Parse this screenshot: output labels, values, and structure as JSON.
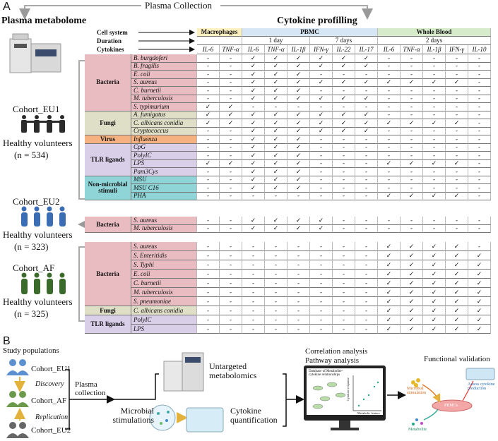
{
  "panel_a": {
    "label": "A",
    "plasma_collection": "Plasma Collection",
    "left_title": "Plasma metabolome",
    "right_title": "Cytokine profilling",
    "cohorts": [
      {
        "name": "Cohort_EU1",
        "label": "Healthy volunteers",
        "n": "(n = 534)"
      },
      {
        "name": "Cohort_EU2",
        "label": "Healthy volunteers",
        "n": "(n = 323)"
      },
      {
        "name": "Cohort_AF",
        "label": "Healthy volunteers",
        "n": "(n = 325)"
      }
    ],
    "table": {
      "row_headers": [
        "Cell system",
        "Duration",
        "Cytokines"
      ],
      "cell_systems": [
        {
          "name": "Macrophages",
          "color": "#fcefc0",
          "durations": [
            {
              "cytokines": [
                "IL-6",
                "TNF-α"
              ]
            }
          ]
        },
        {
          "name": "PBMC",
          "color": "#d7e6f5",
          "durations": [
            {
              "label": "1 day",
              "cytokines": [
                "IL-6",
                "TNF-α",
                "IL-1β"
              ]
            },
            {
              "label": "7 days",
              "cytokines": [
                "IFN-γ",
                "IL-22",
                "IL-17"
              ]
            }
          ]
        },
        {
          "name": "Whole Blood",
          "color": "#d6ebc9",
          "durations": [
            {
              "label": "2 days",
              "cytokines": [
                "IL-6",
                "TNF-α",
                "IL-1β",
                "IFN-γ",
                "IL-10"
              ]
            }
          ]
        }
      ],
      "blocks": [
        {
          "groups": [
            {
              "name": "Bacteria",
              "color": "#e9bcc1",
              "rows": [
                {
                  "stimulus": "B. burgdoferi",
                  "cells": [
                    "-",
                    "-",
                    "✓",
                    "✓",
                    "✓",
                    "✓",
                    "✓",
                    "✓",
                    "-",
                    "-",
                    "-",
                    "-",
                    "-"
                  ]
                },
                {
                  "stimulus": "B. fragilis",
                  "cells": [
                    "-",
                    "-",
                    "✓",
                    "✓",
                    "✓",
                    "✓",
                    "✓",
                    "✓",
                    "-",
                    "-",
                    "-",
                    "-",
                    "-"
                  ]
                },
                {
                  "stimulus": "E. coli",
                  "cells": [
                    "-",
                    "-",
                    "✓",
                    "✓",
                    "✓",
                    "-",
                    "-",
                    "-",
                    "-",
                    "-",
                    "-",
                    "-",
                    "-"
                  ]
                },
                {
                  "stimulus": "S. aureus",
                  "cells": [
                    "-",
                    "-",
                    "✓",
                    "✓",
                    "✓",
                    "✓",
                    "✓",
                    "✓",
                    "✓",
                    "✓",
                    "✓",
                    "✓",
                    "-"
                  ]
                },
                {
                  "stimulus": "C. burnetii",
                  "cells": [
                    "-",
                    "-",
                    "✓",
                    "✓",
                    "✓",
                    "-",
                    "-",
                    "-",
                    "-",
                    "-",
                    "-",
                    "-",
                    "-"
                  ]
                },
                {
                  "stimulus": "M. tuberculosis",
                  "cells": [
                    "-",
                    "-",
                    "✓",
                    "✓",
                    "✓",
                    "✓",
                    "✓",
                    "✓",
                    "-",
                    "-",
                    "-",
                    "-",
                    "-"
                  ]
                },
                {
                  "stimulus": "S. typimurium",
                  "cells": [
                    "✓",
                    "✓",
                    "-",
                    "-",
                    "-",
                    "-",
                    "-",
                    "-",
                    "-",
                    "-",
                    "-",
                    "-",
                    "-"
                  ]
                }
              ]
            },
            {
              "name": "Fungi",
              "color": "#dedfc6",
              "rows": [
                {
                  "stimulus": "A. fumigatus",
                  "cells": [
                    "✓",
                    "✓",
                    "✓",
                    "✓",
                    "✓",
                    "✓",
                    "✓",
                    "✓",
                    "-",
                    "-",
                    "-",
                    "-",
                    "-"
                  ]
                },
                {
                  "stimulus": "C. albicans conidia",
                  "cells": [
                    "✓",
                    "✓",
                    "✓",
                    "✓",
                    "✓",
                    "✓",
                    "✓",
                    "✓",
                    "✓",
                    "✓",
                    "✓",
                    "✓",
                    "-"
                  ]
                },
                {
                  "stimulus": "Cryptococcus",
                  "cells": [
                    "-",
                    "-",
                    "✓",
                    "✓",
                    "✓",
                    "✓",
                    "✓",
                    "✓",
                    "-",
                    "-",
                    "-",
                    "-",
                    "-"
                  ]
                }
              ]
            },
            {
              "name": "Virus",
              "color": "#f5b17f",
              "rows": [
                {
                  "stimulus": "Influenza",
                  "cells": [
                    "-",
                    "-",
                    "✓",
                    "✓",
                    "✓",
                    "-",
                    "-",
                    "-",
                    "-",
                    "-",
                    "-",
                    "-",
                    "-"
                  ]
                }
              ]
            },
            {
              "name": "TLR ligands",
              "color": "#d9cfe9",
              "rows": [
                {
                  "stimulus": "CpG",
                  "cells": [
                    "-",
                    "-",
                    "✓",
                    "✓",
                    "✓",
                    "-",
                    "-",
                    "-",
                    "-",
                    "-",
                    "-",
                    "-",
                    "-"
                  ]
                },
                {
                  "stimulus": "PolyIC",
                  "cells": [
                    "-",
                    "-",
                    "✓",
                    "✓",
                    "✓",
                    "-",
                    "-",
                    "-",
                    "-",
                    "-",
                    "-",
                    "-",
                    "-"
                  ]
                },
                {
                  "stimulus": "LPS",
                  "cells": [
                    "✓",
                    "✓",
                    "✓",
                    "✓",
                    "✓",
                    "-",
                    "-",
                    "-",
                    "✓",
                    "✓",
                    "✓",
                    "✓",
                    "-"
                  ]
                },
                {
                  "stimulus": "Pam3Cys",
                  "cells": [
                    "-",
                    "-",
                    "✓",
                    "✓",
                    "✓",
                    "-",
                    "-",
                    "-",
                    "-",
                    "-",
                    "-",
                    "-",
                    "-"
                  ]
                }
              ]
            },
            {
              "name": "Non-microbial stimuli",
              "color": "#8fd5d8",
              "rows": [
                {
                  "stimulus": "MSU",
                  "cells": [
                    "-",
                    "-",
                    "✓",
                    "✓",
                    "✓",
                    "-",
                    "-",
                    "-",
                    "-",
                    "-",
                    "-",
                    "-",
                    "-"
                  ]
                },
                {
                  "stimulus": "MSU C16",
                  "cells": [
                    "-",
                    "-",
                    "✓",
                    "✓",
                    "✓",
                    "-",
                    "-",
                    "-",
                    "-",
                    "-",
                    "-",
                    "-",
                    "-"
                  ]
                },
                {
                  "stimulus": "PHA",
                  "cells": [
                    "-",
                    "-",
                    "-",
                    "-",
                    "-",
                    "-",
                    "-",
                    "-",
                    "✓",
                    "✓",
                    "✓",
                    "✓",
                    "-"
                  ]
                }
              ]
            }
          ]
        },
        {
          "groups": [
            {
              "name": "Bacteria",
              "color": "#e9bcc1",
              "rows": [
                {
                  "stimulus": "S. aureus",
                  "cells": [
                    "-",
                    "-",
                    "✓",
                    "✓",
                    "✓",
                    "✓",
                    "-",
                    "-",
                    "-",
                    "-",
                    "-",
                    "-",
                    "-"
                  ]
                },
                {
                  "stimulus": "M. tuberculosis",
                  "cells": [
                    "-",
                    "-",
                    "✓",
                    "✓",
                    "✓",
                    "✓",
                    "-",
                    "-",
                    "-",
                    "-",
                    "-",
                    "-",
                    "-"
                  ]
                }
              ]
            }
          ]
        },
        {
          "groups": [
            {
              "name": "Bacteria",
              "color": "#e9bcc1",
              "rows": [
                {
                  "stimulus": "S. aureus",
                  "cells": [
                    "-",
                    "-",
                    "-",
                    "-",
                    "-",
                    "-",
                    "-",
                    "-",
                    "✓",
                    "✓",
                    "✓",
                    "✓",
                    "-"
                  ]
                },
                {
                  "stimulus": "S. Enteritidis",
                  "cells": [
                    "-",
                    "-",
                    "-",
                    "-",
                    "-",
                    "-",
                    "-",
                    "-",
                    "✓",
                    "✓",
                    "✓",
                    "✓",
                    "✓"
                  ]
                },
                {
                  "stimulus": "S. Typhi",
                  "cells": [
                    "-",
                    "-",
                    "-",
                    "-",
                    "-",
                    "-",
                    "-",
                    "-",
                    "✓",
                    "✓",
                    "✓",
                    "✓",
                    "✓"
                  ]
                },
                {
                  "stimulus": "E. coli",
                  "cells": [
                    "-",
                    "-",
                    "-",
                    "-",
                    "-",
                    "-",
                    "-",
                    "-",
                    "✓",
                    "✓",
                    "✓",
                    "✓",
                    "✓"
                  ]
                },
                {
                  "stimulus": "C. burnetii",
                  "cells": [
                    "-",
                    "-",
                    "-",
                    "-",
                    "-",
                    "-",
                    "-",
                    "-",
                    "✓",
                    "✓",
                    "✓",
                    "✓",
                    "✓"
                  ]
                },
                {
                  "stimulus": "M. tuberculosis",
                  "cells": [
                    "-",
                    "-",
                    "-",
                    "-",
                    "-",
                    "-",
                    "-",
                    "-",
                    "✓",
                    "✓",
                    "✓",
                    "✓",
                    "✓"
                  ]
                },
                {
                  "stimulus": "S. pneumoniae",
                  "cells": [
                    "-",
                    "-",
                    "-",
                    "-",
                    "-",
                    "-",
                    "-",
                    "-",
                    "✓",
                    "✓",
                    "✓",
                    "✓",
                    "✓"
                  ]
                }
              ]
            },
            {
              "name": "Fungi",
              "color": "#dedfc6",
              "rows": [
                {
                  "stimulus": "C. albicans conidia",
                  "cells": [
                    "-",
                    "-",
                    "-",
                    "-",
                    "-",
                    "-",
                    "-",
                    "-",
                    "✓",
                    "✓",
                    "✓",
                    "✓",
                    "✓"
                  ]
                }
              ]
            },
            {
              "name": "TLR ligands",
              "color": "#d9cfe9",
              "rows": [
                {
                  "stimulus": "PolyIC",
                  "cells": [
                    "-",
                    "-",
                    "-",
                    "-",
                    "-",
                    "-",
                    "-",
                    "-",
                    "✓",
                    "✓",
                    "✓",
                    "✓",
                    "✓"
                  ]
                },
                {
                  "stimulus": "LPS",
                  "cells": [
                    "-",
                    "-",
                    "-",
                    "-",
                    "-",
                    "-",
                    "-",
                    "-",
                    "✓",
                    "✓",
                    "✓",
                    "✓",
                    "✓"
                  ]
                }
              ]
            }
          ]
        }
      ]
    }
  },
  "panel_b": {
    "label": "B",
    "study_populations": "Study populations",
    "cohort_1": "Cohort_EU1",
    "discovery": "Discovery",
    "cohort_2": "Cohort_AF",
    "replication": "Replication",
    "cohort_3": "Cohort_EU2",
    "plasma_collection": "Plasma collection",
    "untargeted": "Untargeted metabolomics",
    "microbial_stimulations": "Microbial stimulations",
    "cytokine_quantification": "Cytokine quantification",
    "correlation": "Correlation analysis",
    "pathway": "Pathway analysis",
    "database": "Database of Metabolite-cytokine relationships",
    "cytokine_response": "Cytokine response",
    "metabolic_feature": "Metabolic feature",
    "functional_validation": "Functional validation",
    "microbial_stimulation": "Microbial stimulation",
    "assess": "Assess cytokine production",
    "pbmcs": "PBMCs",
    "metabolite": "Metabolite"
  }
}
